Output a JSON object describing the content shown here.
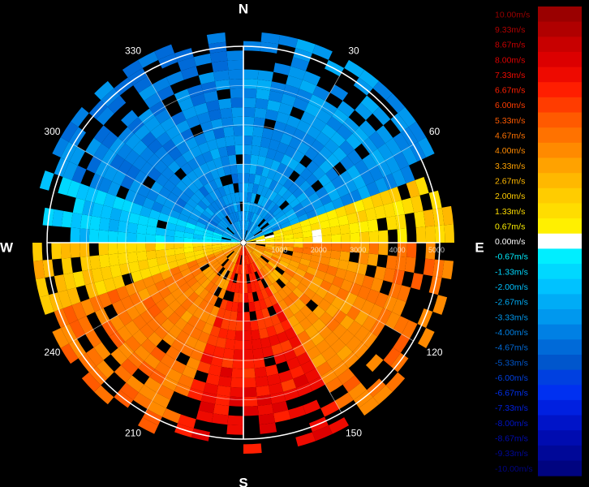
{
  "chart_data": {
    "type": "heatmap",
    "subtype": "polar-radial-velocity",
    "compass": {
      "north": "N",
      "east": "E",
      "south": "S",
      "west": "W"
    },
    "azimuth_labels": [
      "30",
      "60",
      "120",
      "150",
      "210",
      "240",
      "300",
      "330"
    ],
    "range_labels": [
      "1000",
      "2000",
      "3000",
      "4000",
      "5000"
    ],
    "range_max": 5000,
    "range_ring_step": 1000,
    "azimuth_grid_step_deg": 30,
    "colorbar": {
      "labels": [
        "10.00m/s",
        "9.33m/s",
        "8.67m/s",
        "8.00m/s",
        "7.33m/s",
        "6.67m/s",
        "6.00m/s",
        "5.33m/s",
        "4.67m/s",
        "4.00m/s",
        "3.33m/s",
        "2.67m/s",
        "2.00m/s",
        "1.33m/s",
        "0.67m/s",
        "0.00m/s",
        "-0.67m/s",
        "-1.33m/s",
        "-2.00m/s",
        "-2.67m/s",
        "-3.33m/s",
        "-4.00m/s",
        "-4.67m/s",
        "-5.33m/s",
        "-6.00m/s",
        "-6.67m/s",
        "-7.33m/s",
        "-8.00m/s",
        "-8.67m/s",
        "-9.33m/s",
        "-10.00m/s"
      ],
      "values": [
        10,
        9.33,
        8.67,
        8,
        7.33,
        6.67,
        6,
        5.33,
        4.67,
        4,
        3.33,
        2.67,
        2,
        1.33,
        0.67,
        0,
        -0.67,
        -1.33,
        -2,
        -2.67,
        -3.33,
        -4,
        -4.67,
        -5.33,
        -6,
        -6.67,
        -7.33,
        -8,
        -8.67,
        -9.33,
        -10
      ],
      "colors": [
        "#9a0000",
        "#b00000",
        "#c80000",
        "#dc0000",
        "#ee0a00",
        "#ff1e00",
        "#ff3c00",
        "#ff5a00",
        "#ff7200",
        "#ff8a00",
        "#ffa200",
        "#ffb800",
        "#ffcc00",
        "#ffdd00",
        "#fff000",
        "#ffffff",
        "#00eeff",
        "#00d8ff",
        "#00c2ff",
        "#00acf6",
        "#0098ee",
        "#0080e4",
        "#006ad8",
        "#0056cc",
        "#0040e0",
        "#0030f0",
        "#0020e0",
        "#0014c8",
        "#000cb0",
        "#000898",
        "#000480"
      ]
    },
    "velocity_field": {
      "description_note": "",
      "sectors": [
        {
          "az_from": 290,
          "az_to": 360,
          "velocity": -3.5
        },
        {
          "az_from": 0,
          "az_to": 70,
          "velocity": -3.0
        },
        {
          "az_from": 70,
          "az_to": 90,
          "velocity": 0.7
        },
        {
          "az_from": 90,
          "az_to": 150,
          "velocity": 3.5
        },
        {
          "az_from": 150,
          "az_to": 200,
          "velocity": 6.3
        },
        {
          "az_from": 200,
          "az_to": 250,
          "velocity": 3.8
        },
        {
          "az_from": 250,
          "az_to": 272,
          "velocity": 1.3
        },
        {
          "az_from": 272,
          "az_to": 290,
          "velocity": -1.3
        }
      ]
    }
  }
}
